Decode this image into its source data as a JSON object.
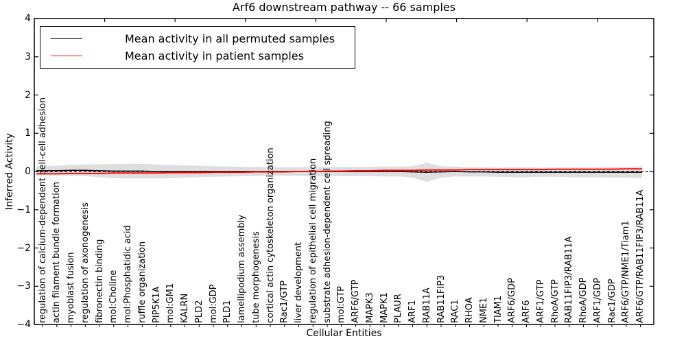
{
  "figure": {
    "title": "Arf6 downstream pathway -- 66 samples",
    "xlabel": "Cellular Entities",
    "ylabel": "Inferred Activity"
  },
  "legend": {
    "position": "upper left",
    "items": [
      {
        "label": "Mean activity in all permuted samples",
        "color": "#000000"
      },
      {
        "label": "Mean activity in patient samples",
        "color": "#ff0000"
      }
    ]
  },
  "chart_data": {
    "type": "line",
    "title": "Arf6 downstream pathway -- 66 samples",
    "xlabel": "Cellular Entities",
    "ylabel": "Inferred Activity",
    "ylim": [
      -4,
      4
    ],
    "yticks": [
      4,
      3,
      2,
      1,
      0,
      -1,
      -2,
      -3,
      -4
    ],
    "grid": false,
    "legend_position": "upper left",
    "zero_line": {
      "y": 0,
      "style": "dashed",
      "color": "#000000"
    },
    "band": {
      "name": "permuted activity spread",
      "color": "#000000",
      "alpha": 0.13,
      "upper": [
        0.14,
        0.15,
        0.17,
        0.18,
        0.19,
        0.19,
        0.2,
        0.2,
        0.18,
        0.17,
        0.16,
        0.15,
        0.14,
        0.13,
        0.12,
        0.12,
        0.11,
        0.11,
        0.11,
        0.12,
        0.12,
        0.12,
        0.12,
        0.12,
        0.13,
        0.13,
        0.14,
        0.23,
        0.14,
        0.13,
        0.11,
        0.11,
        0.1,
        0.11,
        0.11,
        0.1,
        0.1,
        0.11,
        0.11,
        0.11,
        0.12,
        0.12,
        0.13
      ],
      "lower": [
        -0.1,
        -0.11,
        -0.11,
        -0.12,
        -0.15,
        -0.17,
        -0.18,
        -0.18,
        -0.18,
        -0.17,
        -0.16,
        -0.15,
        -0.14,
        -0.13,
        -0.12,
        -0.12,
        -0.11,
        -0.11,
        -0.11,
        -0.12,
        -0.12,
        -0.12,
        -0.12,
        -0.12,
        -0.13,
        -0.13,
        -0.16,
        -0.27,
        -0.16,
        -0.13,
        -0.13,
        -0.13,
        -0.14,
        -0.15,
        -0.15,
        -0.14,
        -0.14,
        -0.15,
        -0.15,
        -0.15,
        -0.16,
        -0.16,
        -0.17
      ]
    },
    "categories": [
      "regulation of calcium-dependent cell-cell adhesion",
      "actin filament bundle formation",
      "myoblast fusion",
      "regulation of axonogenesis",
      "fibronectin binding",
      "mol:Choline",
      "mol:Phosphatidic acid",
      "ruffle organization",
      "PIP5K1A",
      "mol:GM1",
      "KALRN",
      "PLD2",
      "mol:GDP",
      "PLD1",
      "lamellipodium assembly",
      "tube morphogenesis",
      "cortical actin cytoskeleton organization",
      "Rac1/GTP",
      "liver development",
      "regulation of epithelial cell migration",
      "substrate adhesion-dependent cell spreading",
      "mol:GTP",
      "ARF6/GTP",
      "MAPK3",
      "MAPK1",
      "PLAUR",
      "ARF1",
      "RAB11A",
      "RAB11FIP3",
      "RAC1",
      "RHOA",
      "NME1",
      "TIAM1",
      "ARF6/GDP",
      "ARF6",
      "ARF1/GTP",
      "RhoA/GTP",
      "RAB11FIP3/RAB11A",
      "RhoA/GDP",
      "ARF1/GDP",
      "Rac1/GDP",
      "ARF6/GTP/NME1/Tiam1",
      "ARF6/GTP/RAB11FIP3/RAB11A"
    ],
    "series": [
      {
        "name": "Mean activity in all permuted samples",
        "color": "#000000",
        "values": [
          0.02,
          0.02,
          0.03,
          0.03,
          0.02,
          0.01,
          0.01,
          0.01,
          0,
          0,
          0,
          0,
          0,
          0,
          0,
          0,
          0,
          0,
          0,
          0,
          0,
          0,
          0,
          0,
          0,
          0,
          -0.01,
          -0.02,
          -0.01,
          0,
          -0.01,
          -0.01,
          -0.02,
          -0.02,
          -0.02,
          -0.02,
          -0.02,
          -0.02,
          -0.02,
          -0.02,
          -0.02,
          -0.02,
          -0.02
        ]
      },
      {
        "name": "Mean activity in patient samples",
        "color": "#ff0000",
        "values": [
          -0.06,
          -0.06,
          -0.05,
          -0.05,
          -0.05,
          -0.04,
          -0.04,
          -0.04,
          -0.04,
          -0.03,
          -0.03,
          -0.03,
          -0.02,
          -0.02,
          -0.02,
          -0.01,
          -0.01,
          -0.01,
          0,
          0,
          0.01,
          0.01,
          0.02,
          0.02,
          0.03,
          0.03,
          0.03,
          0.04,
          0.04,
          0.04,
          0.05,
          0.05,
          0.05,
          0.05,
          0.05,
          0.05,
          0.06,
          0.06,
          0.06,
          0.06,
          0.06,
          0.07,
          0.07
        ]
      }
    ]
  }
}
